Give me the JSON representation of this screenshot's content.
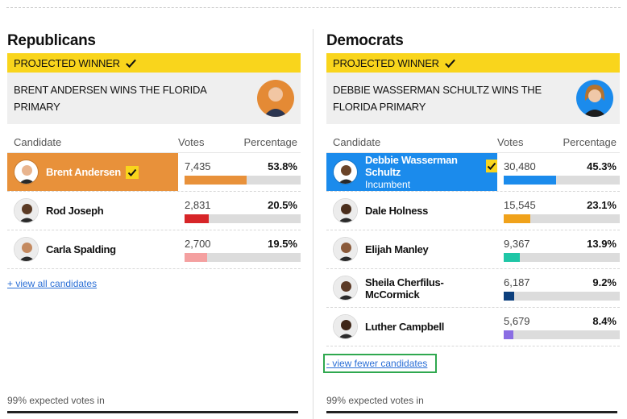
{
  "colors": {
    "projected_bar": "#f9d51c",
    "rep_winner_bg": "#e8913a",
    "dem_winner_bg": "#1b8bec",
    "link": "#2b6fd6",
    "focus_border": "#2fa84f"
  },
  "republicans": {
    "title": "Republicans",
    "projected_label": "PROJECTED WINNER",
    "winner_text": "BRENT ANDERSEN WINS THE FLORIDA PRIMARY",
    "headers": {
      "candidate": "Candidate",
      "votes": "Votes",
      "percentage": "Percentage"
    },
    "candidates": [
      {
        "name": "Brent Andersen",
        "sub": "",
        "votes": "7,435",
        "pct": "53.8%",
        "share": 0.538,
        "color": "#e8913a",
        "winner": true
      },
      {
        "name": "Rod Joseph",
        "sub": "",
        "votes": "2,831",
        "pct": "20.5%",
        "share": 0.205,
        "color": "#d72528",
        "winner": false
      },
      {
        "name": "Carla Spalding",
        "sub": "",
        "votes": "2,700",
        "pct": "19.5%",
        "share": 0.195,
        "color": "#f4a0a0",
        "winner": false
      }
    ],
    "link": "+ view all candidates",
    "expected": "99% expected votes in"
  },
  "democrats": {
    "title": "Democrats",
    "projected_label": "PROJECTED WINNER",
    "winner_text": "DEBBIE WASSERMAN SCHULTZ WINS THE FLORIDA PRIMARY",
    "headers": {
      "candidate": "Candidate",
      "votes": "Votes",
      "percentage": "Percentage"
    },
    "candidates": [
      {
        "name": "Debbie Wasserman Schultz",
        "sub": "Incumbent",
        "votes": "30,480",
        "pct": "45.3%",
        "share": 0.453,
        "color": "#1b8bec",
        "winner": true
      },
      {
        "name": "Dale Holness",
        "sub": "",
        "votes": "15,545",
        "pct": "23.1%",
        "share": 0.231,
        "color": "#f0a21b",
        "winner": false
      },
      {
        "name": "Elijah Manley",
        "sub": "",
        "votes": "9,367",
        "pct": "13.9%",
        "share": 0.139,
        "color": "#1fc6a6",
        "winner": false
      },
      {
        "name": "Sheila Cherfilus-McCormick",
        "sub": "",
        "votes": "6,187",
        "pct": "9.2%",
        "share": 0.092,
        "color": "#0c3f7d",
        "winner": false
      },
      {
        "name": "Luther Campbell",
        "sub": "",
        "votes": "5,679",
        "pct": "8.4%",
        "share": 0.084,
        "color": "#8a6de3",
        "winner": false
      }
    ],
    "link": "- view fewer candidates",
    "expected": "99% expected votes in"
  }
}
